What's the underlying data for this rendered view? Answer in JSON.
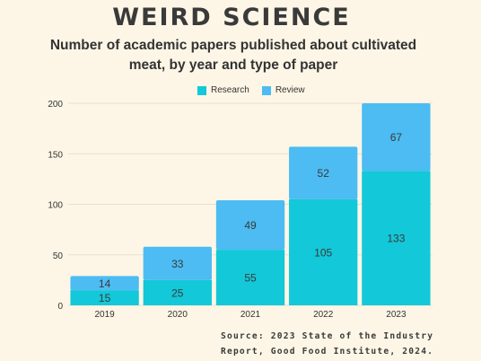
{
  "title": "WEIRD SCIENCE",
  "subtitle": "Number of academic papers published about cultivated meat, by year and type of paper",
  "colors": {
    "research": "#13c8d8",
    "review": "#4cbcf2",
    "background": "#fdf6e6",
    "grid": "#e6e0d2",
    "label": "#3a3a3a"
  },
  "chart_data": {
    "type": "bar",
    "stacked": true,
    "categories": [
      "2019",
      "2020",
      "2021",
      "2022",
      "2023"
    ],
    "series": [
      {
        "name": "Research",
        "values": [
          15,
          25,
          55,
          105,
          133
        ]
      },
      {
        "name": "Review",
        "values": [
          14,
          33,
          49,
          52,
          67
        ]
      }
    ],
    "ylim": [
      0,
      200
    ],
    "yticks": [
      0,
      50,
      100,
      150,
      200
    ],
    "grid": true,
    "legend": "top-center"
  },
  "source": {
    "line1": "Source: 2023 State of the Industry",
    "line2": "Report, Good Food Institute, 2024."
  }
}
